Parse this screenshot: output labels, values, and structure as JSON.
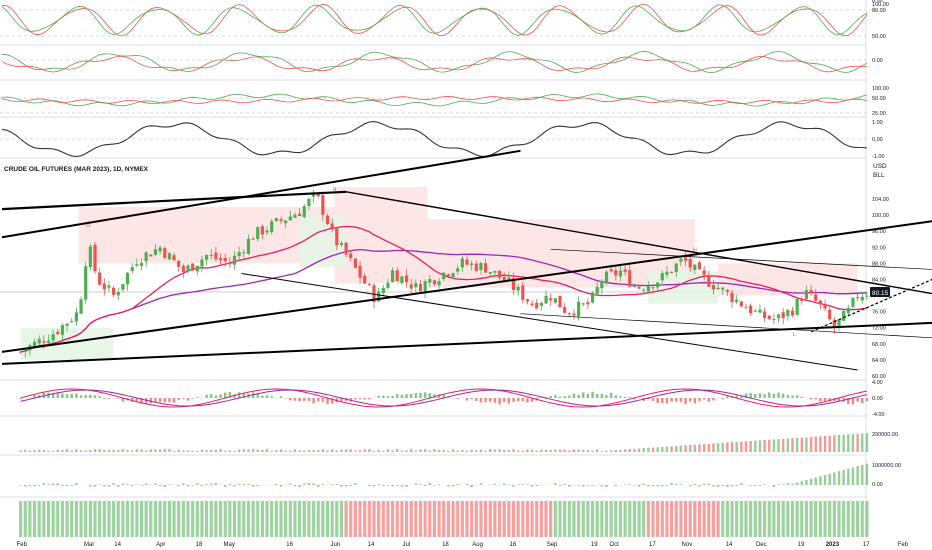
{
  "chart_data": {
    "type": "candlestick",
    "title": "CRUDE OIL FUTURES (MAR 2023), 1D, NYMEX",
    "currency": "USD",
    "unit": "BLL",
    "last_price": "80.15",
    "price_ticks": [
      "104.00",
      "100.00",
      "96.00",
      "92.00",
      "88.00",
      "84.00",
      "76.00",
      "72.00",
      "68.00",
      "64.00",
      "60.00"
    ],
    "price_ylim": [
      60,
      107
    ],
    "x_labels": [
      "Feb",
      "Mar",
      "14",
      "Apr",
      "18",
      "May",
      "16",
      "Jun",
      "14",
      "Jul",
      "18",
      "Aug",
      "16",
      "Sep",
      "19",
      "Oct",
      "17",
      "Nov",
      "14",
      "Dec",
      "19",
      "2023",
      "17",
      "Feb"
    ],
    "x_label_days": [
      0,
      29,
      42,
      60,
      77,
      89,
      116,
      135,
      151,
      166,
      183,
      196,
      212,
      228,
      247,
      255,
      272,
      286,
      305,
      318,
      336,
      348,
      364,
      379
    ],
    "x_range_days": [
      -8,
      392
    ],
    "close_days": [
      0,
      15,
      25,
      29,
      33,
      40,
      50,
      60,
      70,
      80,
      90,
      100,
      110,
      120,
      127,
      131,
      135,
      140,
      147,
      153,
      160,
      170,
      180,
      190,
      200,
      210,
      220,
      228,
      235,
      245,
      250,
      258,
      265,
      275,
      285,
      292,
      300,
      310,
      318,
      325,
      333,
      337,
      343,
      350,
      356,
      360,
      365
    ],
    "close_values": [
      66,
      71,
      76,
      93,
      84,
      80,
      89,
      92,
      86,
      90,
      88,
      95,
      98,
      101,
      105,
      100,
      94,
      90,
      84,
      79,
      86,
      82,
      85,
      88,
      87,
      83,
      78,
      80,
      76,
      78,
      84,
      86,
      82,
      84,
      89,
      85,
      82,
      78,
      75,
      74,
      77,
      81,
      78,
      72,
      76,
      80,
      81
    ],
    "pivot_labels": [
      {
        "text": "H",
        "day": 29,
        "value": 97
      },
      {
        "text": "H",
        "day": 135,
        "value": 106
      },
      {
        "text": "L",
        "day": 222,
        "value": 76.5
      },
      {
        "text": "H",
        "day": 290,
        "value": 91
      },
      {
        "text": "L",
        "day": 333,
        "value": 70
      }
    ],
    "oscillator_panels": [
      {
        "name": "stochastic",
        "ticks": [
          "100.00",
          "80.00",
          "50.00",
          "0.00"
        ],
        "ylim": [
          -10,
          110
        ]
      },
      {
        "name": "momentum",
        "ticks": [
          "0.00"
        ]
      },
      {
        "name": "rsi",
        "ticks": [
          "100.00",
          "50.00",
          "25.00"
        ],
        "ylim": [
          0,
          100
        ]
      },
      {
        "name": "cycle",
        "ticks": [
          "1.00",
          "0.00",
          "-1.00"
        ],
        "ylim": [
          -1.2,
          1.2
        ]
      }
    ],
    "macd_ticks": [
      "4.00",
      "0.00",
      "-4.00"
    ],
    "volume_ticks": [
      "200000.00"
    ],
    "obv_ticks": [
      "1000000.00",
      "0.00"
    ],
    "colors": {
      "up": "#4caf50",
      "down": "#ef5350",
      "ma_fast": "#e91e63",
      "ma_slow": "#9c27b0",
      "trend": "#000000",
      "zone_red": "#fde2e2",
      "zone_green": "#e4f4e4"
    }
  }
}
